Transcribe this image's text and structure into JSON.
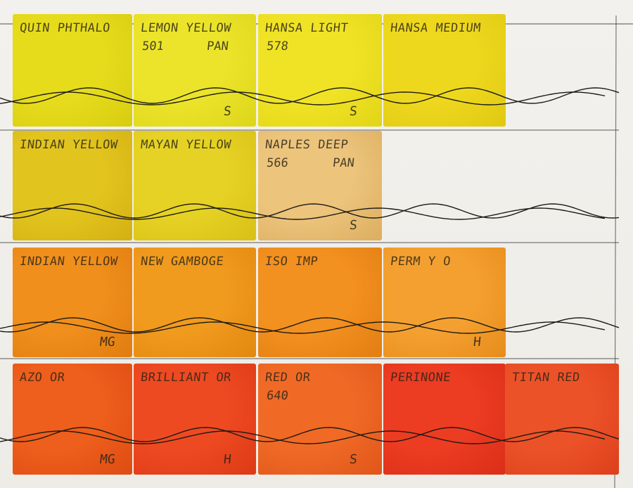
{
  "swatches": [
    {
      "name": "QUIN PHTHALO",
      "row": 0,
      "col": 0,
      "color": "#e6dc1c",
      "edge": "#d8cc10"
    },
    {
      "name": "LEMON YELLOW",
      "code": "501",
      "brand": "PAN",
      "row": 0,
      "col": 1,
      "color": "#ebe42a",
      "edge": "#ddd51a",
      "mark": "S"
    },
    {
      "name": "HANSA LIGHT",
      "code": "578",
      "row": 0,
      "col": 2,
      "color": "#f0e326",
      "edge": "#e2d416",
      "mark": "S"
    },
    {
      "name": "HANSA MEDIUM",
      "row": 0,
      "col": 3,
      "color": "#eed81e",
      "edge": "#e0c812"
    },
    {
      "name": "INDIAN YELLOW",
      "row": 1,
      "col": 0,
      "color": "#e2c41e",
      "edge": "#d4b012"
    },
    {
      "name": "MAYAN YELLOW",
      "row": 1,
      "col": 1,
      "color": "#e6d224",
      "edge": "#d8c016"
    },
    {
      "name": "NAPLES DEEP",
      "code": "566",
      "brand": "PAN",
      "row": 1,
      "col": 2,
      "color": "#ecc47c",
      "edge": "#dcae60",
      "mark": "S"
    },
    {
      "name": "INDIAN YELLOW",
      "row": 2,
      "col": 0,
      "color": "#f08f1c",
      "edge": "#e07c10",
      "mark": "MG"
    },
    {
      "name": "NEW GAMBOGE",
      "row": 2,
      "col": 1,
      "color": "#f09a1e",
      "edge": "#e28810"
    },
    {
      "name": "ISO IMP",
      "row": 2,
      "col": 2,
      "color": "#f29020",
      "edge": "#e27e12"
    },
    {
      "name": "PERM Y O",
      "row": 2,
      "col": 3,
      "color": "#f4a030",
      "edge": "#e68c1c",
      "mark": "H"
    },
    {
      "name": "AZO OR",
      "row": 3,
      "col": 0,
      "color": "#ee5e1c",
      "edge": "#de4c12",
      "mark": "MG"
    },
    {
      "name": "BRILLIANT OR",
      "row": 3,
      "col": 1,
      "color": "#ee4a22",
      "edge": "#dc3a16",
      "mark": "H"
    },
    {
      "name": "RED OR",
      "code": "640",
      "row": 3,
      "col": 2,
      "color": "#f06a26",
      "edge": "#e0561a",
      "mark": "S"
    },
    {
      "name": "PERINONE",
      "row": 3,
      "col": 3,
      "color": "#ec3c22",
      "edge": "#da2e18"
    },
    {
      "name": "TITAN RED",
      "row": 3,
      "col": 4,
      "color": "#ec5228",
      "edge": "#dc401c"
    }
  ]
}
